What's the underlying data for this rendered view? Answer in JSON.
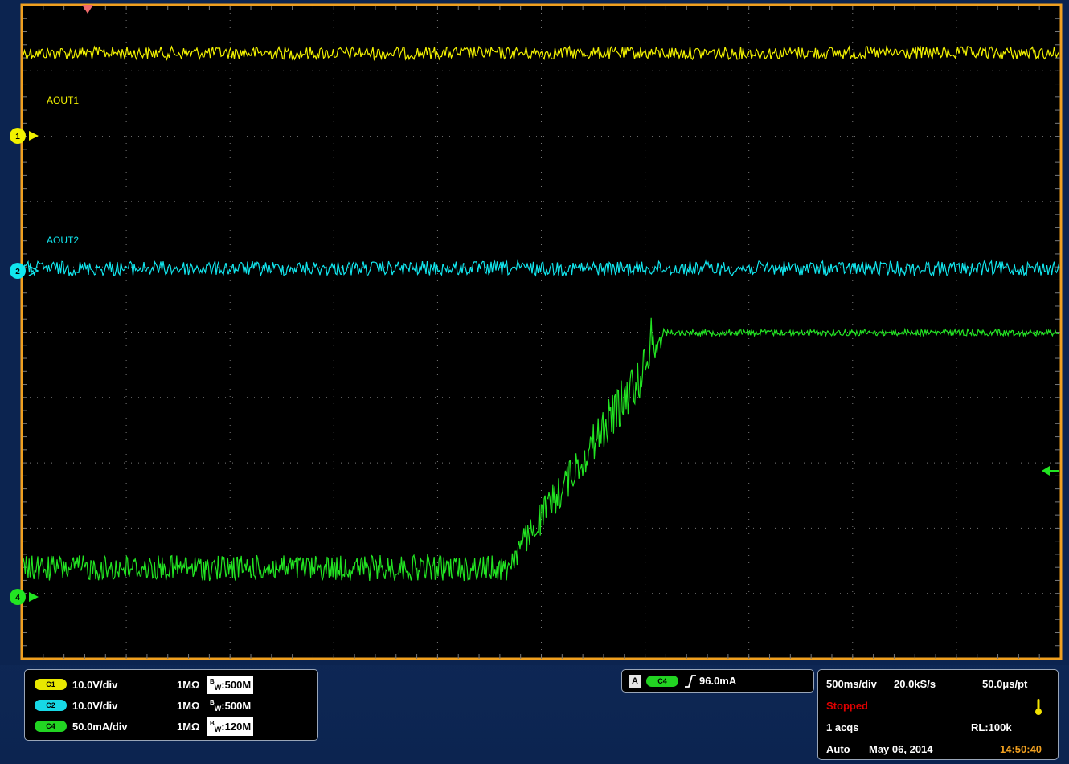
{
  "waveforms": [
    {
      "label": "AOUT1",
      "color": "#f2f200",
      "marker": "1"
    },
    {
      "label": "AOUT2",
      "color": "#11e6ee",
      "marker": "2"
    },
    {
      "label": "",
      "color": "#22e522",
      "marker": "4"
    }
  ],
  "channels": [
    {
      "chip": "C1",
      "color": "#e8e800",
      "scale": "10.0V/div",
      "impedance": "1MΩ",
      "bw": "500M",
      "bw_boxed": true
    },
    {
      "chip": "C2",
      "color": "#17d8e6",
      "scale": "10.0V/div",
      "impedance": "1MΩ",
      "bw": "500M",
      "bw_boxed": false
    },
    {
      "chip": "C4",
      "color": "#22d422",
      "scale": "50.0mA/div",
      "impedance": "1MΩ",
      "bw": "120M",
      "bw_boxed": true
    }
  ],
  "bw_prefix_top": "B",
  "bw_prefix_sub": "W",
  "trigger": {
    "mode_letter": "A",
    "source": "C4",
    "level": "96.0mA",
    "color": "#22d422"
  },
  "timebase": {
    "scale": "500ms/div",
    "sample_rate": "20.0kS/s",
    "resolution": "50.0μs/pt",
    "state": "Stopped",
    "state_color": "#e00000",
    "acqs": "1 acqs",
    "record_length": "RL:100k",
    "mode": "Auto",
    "date": "May 06, 2014",
    "time": "14:50:40",
    "time_color": "#f0a020"
  }
}
